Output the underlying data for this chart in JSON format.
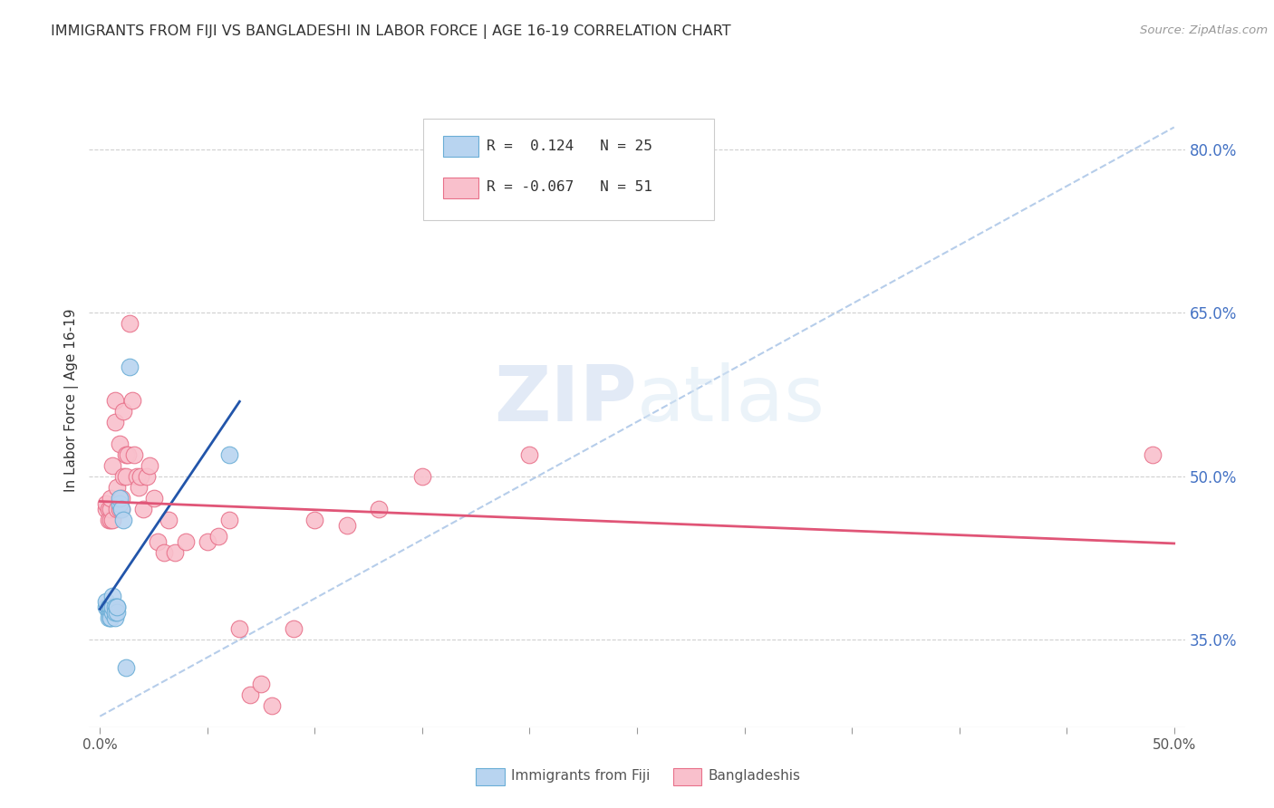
{
  "title": "IMMIGRANTS FROM FIJI VS BANGLADESHI IN LABOR FORCE | AGE 16-19 CORRELATION CHART",
  "source": "Source: ZipAtlas.com",
  "ylabel": "In Labor Force | Age 16-19",
  "xlim": [
    -0.005,
    0.505
  ],
  "ylim": [
    0.27,
    0.87
  ],
  "xticks": [
    0.0,
    0.05,
    0.1,
    0.15,
    0.2,
    0.25,
    0.3,
    0.35,
    0.4,
    0.45,
    0.5
  ],
  "xticklabels": [
    "0.0%",
    "",
    "",
    "",
    "",
    "",
    "",
    "",
    "",
    "",
    "50.0%"
  ],
  "right_yticks": [
    0.35,
    0.5,
    0.65,
    0.8
  ],
  "right_yticklabels": [
    "35.0%",
    "50.0%",
    "65.0%",
    "80.0%"
  ],
  "fiji_color": "#b8d4f0",
  "fiji_edge_color": "#6baed6",
  "bangladesh_color": "#f9c0cc",
  "bangladesh_edge_color": "#e8718a",
  "fiji_R": 0.124,
  "fiji_N": 25,
  "bangladesh_R": -0.067,
  "bangladesh_N": 51,
  "fiji_scatter_x": [
    0.003,
    0.003,
    0.004,
    0.004,
    0.004,
    0.005,
    0.005,
    0.005,
    0.005,
    0.006,
    0.006,
    0.006,
    0.007,
    0.007,
    0.007,
    0.008,
    0.008,
    0.008,
    0.009,
    0.009,
    0.01,
    0.011,
    0.012,
    0.014,
    0.06
  ],
  "fiji_scatter_y": [
    0.38,
    0.385,
    0.375,
    0.38,
    0.37,
    0.37,
    0.375,
    0.38,
    0.37,
    0.375,
    0.38,
    0.39,
    0.37,
    0.38,
    0.375,
    0.38,
    0.375,
    0.38,
    0.475,
    0.48,
    0.47,
    0.46,
    0.325,
    0.6,
    0.52
  ],
  "bangladesh_scatter_x": [
    0.003,
    0.003,
    0.004,
    0.004,
    0.005,
    0.005,
    0.005,
    0.006,
    0.006,
    0.007,
    0.007,
    0.008,
    0.008,
    0.009,
    0.009,
    0.01,
    0.01,
    0.011,
    0.011,
    0.012,
    0.012,
    0.013,
    0.014,
    0.015,
    0.016,
    0.017,
    0.018,
    0.019,
    0.02,
    0.022,
    0.023,
    0.025,
    0.027,
    0.03,
    0.032,
    0.035,
    0.04,
    0.05,
    0.055,
    0.06,
    0.065,
    0.07,
    0.075,
    0.08,
    0.09,
    0.1,
    0.115,
    0.13,
    0.15,
    0.2,
    0.49
  ],
  "bangladesh_scatter_y": [
    0.47,
    0.475,
    0.47,
    0.46,
    0.46,
    0.47,
    0.48,
    0.46,
    0.51,
    0.55,
    0.57,
    0.47,
    0.49,
    0.47,
    0.53,
    0.47,
    0.48,
    0.5,
    0.56,
    0.5,
    0.52,
    0.52,
    0.64,
    0.57,
    0.52,
    0.5,
    0.49,
    0.5,
    0.47,
    0.5,
    0.51,
    0.48,
    0.44,
    0.43,
    0.46,
    0.43,
    0.44,
    0.44,
    0.445,
    0.46,
    0.36,
    0.3,
    0.31,
    0.29,
    0.36,
    0.46,
    0.455,
    0.47,
    0.5,
    0.52,
    0.52
  ],
  "diagonal_line_color": "#aec8e8",
  "fiji_line_color": "#2255aa",
  "bangladesh_line_color": "#e05577",
  "watermark_zip": "ZIP",
  "watermark_atlas": "atlas",
  "background_color": "#ffffff",
  "grid_color": "#d0d0d0",
  "title_color": "#333333",
  "right_yaxis_color": "#4472c4",
  "legend_fiji_label": "Immigrants from Fiji",
  "legend_bangladesh_label": "Bangladeshis"
}
